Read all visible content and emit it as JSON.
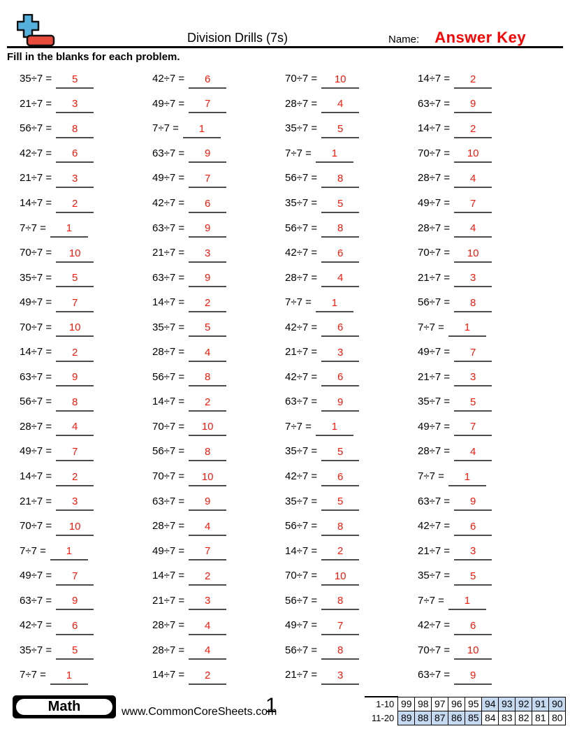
{
  "header": {
    "title": "Division Drills (7s)",
    "name_label": "Name:",
    "name_value": "Answer Key",
    "instructions": "Fill in the blanks for each problem.",
    "logo_icon": "plus-minus-math-logo"
  },
  "colors": {
    "accent_red": "#fe0000",
    "answer_red": "#f9180a",
    "highlight_blue": "#c5d9f1",
    "logo_blue": "#56b0dc",
    "logo_red": "#e84b3c"
  },
  "problems": {
    "columns": [
      [
        {
          "q": "35÷7 =",
          "a": "5"
        },
        {
          "q": "21÷7 =",
          "a": "3"
        },
        {
          "q": "56÷7 =",
          "a": "8"
        },
        {
          "q": "42÷7 =",
          "a": "6"
        },
        {
          "q": "21÷7 =",
          "a": "3"
        },
        {
          "q": "14÷7 =",
          "a": "2"
        },
        {
          "q": "7÷7 =",
          "a": "1"
        },
        {
          "q": "70÷7 =",
          "a": "10"
        },
        {
          "q": "35÷7 =",
          "a": "5"
        },
        {
          "q": "49÷7 =",
          "a": "7"
        },
        {
          "q": "70÷7 =",
          "a": "10"
        },
        {
          "q": "14÷7 =",
          "a": "2"
        },
        {
          "q": "63÷7 =",
          "a": "9"
        },
        {
          "q": "56÷7 =",
          "a": "8"
        },
        {
          "q": "28÷7 =",
          "a": "4"
        },
        {
          "q": "49÷7 =",
          "a": "7"
        },
        {
          "q": "14÷7 =",
          "a": "2"
        },
        {
          "q": "21÷7 =",
          "a": "3"
        },
        {
          "q": "70÷7 =",
          "a": "10"
        },
        {
          "q": "7÷7 =",
          "a": "1"
        },
        {
          "q": "49÷7 =",
          "a": "7"
        },
        {
          "q": "63÷7 =",
          "a": "9"
        },
        {
          "q": "42÷7 =",
          "a": "6"
        },
        {
          "q": "35÷7 =",
          "a": "5"
        },
        {
          "q": "7÷7 =",
          "a": "1"
        }
      ],
      [
        {
          "q": "42÷7 =",
          "a": "6"
        },
        {
          "q": "49÷7 =",
          "a": "7"
        },
        {
          "q": "7÷7 =",
          "a": "1"
        },
        {
          "q": "63÷7 =",
          "a": "9"
        },
        {
          "q": "49÷7 =",
          "a": "7"
        },
        {
          "q": "42÷7 =",
          "a": "6"
        },
        {
          "q": "63÷7 =",
          "a": "9"
        },
        {
          "q": "21÷7 =",
          "a": "3"
        },
        {
          "q": "63÷7 =",
          "a": "9"
        },
        {
          "q": "14÷7 =",
          "a": "2"
        },
        {
          "q": "35÷7 =",
          "a": "5"
        },
        {
          "q": "28÷7 =",
          "a": "4"
        },
        {
          "q": "56÷7 =",
          "a": "8"
        },
        {
          "q": "14÷7 =",
          "a": "2"
        },
        {
          "q": "70÷7 =",
          "a": "10"
        },
        {
          "q": "56÷7 =",
          "a": "8"
        },
        {
          "q": "70÷7 =",
          "a": "10"
        },
        {
          "q": "63÷7 =",
          "a": "9"
        },
        {
          "q": "28÷7 =",
          "a": "4"
        },
        {
          "q": "49÷7 =",
          "a": "7"
        },
        {
          "q": "14÷7 =",
          "a": "2"
        },
        {
          "q": "21÷7 =",
          "a": "3"
        },
        {
          "q": "28÷7 =",
          "a": "4"
        },
        {
          "q": "28÷7 =",
          "a": "4"
        },
        {
          "q": "14÷7 =",
          "a": "2"
        }
      ],
      [
        {
          "q": "70÷7 =",
          "a": "10"
        },
        {
          "q": "28÷7 =",
          "a": "4"
        },
        {
          "q": "35÷7 =",
          "a": "5"
        },
        {
          "q": "7÷7 =",
          "a": "1"
        },
        {
          "q": "56÷7 =",
          "a": "8"
        },
        {
          "q": "35÷7 =",
          "a": "5"
        },
        {
          "q": "56÷7 =",
          "a": "8"
        },
        {
          "q": "42÷7 =",
          "a": "6"
        },
        {
          "q": "28÷7 =",
          "a": "4"
        },
        {
          "q": "7÷7 =",
          "a": "1"
        },
        {
          "q": "42÷7 =",
          "a": "6"
        },
        {
          "q": "21÷7 =",
          "a": "3"
        },
        {
          "q": "42÷7 =",
          "a": "6"
        },
        {
          "q": "63÷7 =",
          "a": "9"
        },
        {
          "q": "7÷7 =",
          "a": "1"
        },
        {
          "q": "35÷7 =",
          "a": "5"
        },
        {
          "q": "42÷7 =",
          "a": "6"
        },
        {
          "q": "35÷7 =",
          "a": "5"
        },
        {
          "q": "56÷7 =",
          "a": "8"
        },
        {
          "q": "14÷7 =",
          "a": "2"
        },
        {
          "q": "70÷7 =",
          "a": "10"
        },
        {
          "q": "56÷7 =",
          "a": "8"
        },
        {
          "q": "49÷7 =",
          "a": "7"
        },
        {
          "q": "56÷7 =",
          "a": "8"
        },
        {
          "q": "21÷7 =",
          "a": "3"
        }
      ],
      [
        {
          "q": "14÷7 =",
          "a": "2"
        },
        {
          "q": "63÷7 =",
          "a": "9"
        },
        {
          "q": "14÷7 =",
          "a": "2"
        },
        {
          "q": "70÷7 =",
          "a": "10"
        },
        {
          "q": "28÷7 =",
          "a": "4"
        },
        {
          "q": "49÷7 =",
          "a": "7"
        },
        {
          "q": "28÷7 =",
          "a": "4"
        },
        {
          "q": "70÷7 =",
          "a": "10"
        },
        {
          "q": "21÷7 =",
          "a": "3"
        },
        {
          "q": "56÷7 =",
          "a": "8"
        },
        {
          "q": "7÷7 =",
          "a": "1"
        },
        {
          "q": "49÷7 =",
          "a": "7"
        },
        {
          "q": "21÷7 =",
          "a": "3"
        },
        {
          "q": "35÷7 =",
          "a": "5"
        },
        {
          "q": "49÷7 =",
          "a": "7"
        },
        {
          "q": "28÷7 =",
          "a": "4"
        },
        {
          "q": "7÷7 =",
          "a": "1"
        },
        {
          "q": "63÷7 =",
          "a": "9"
        },
        {
          "q": "42÷7 =",
          "a": "6"
        },
        {
          "q": "21÷7 =",
          "a": "3"
        },
        {
          "q": "35÷7 =",
          "a": "5"
        },
        {
          "q": "7÷7 =",
          "a": "1"
        },
        {
          "q": "42÷7 =",
          "a": "6"
        },
        {
          "q": "70÷7 =",
          "a": "10"
        },
        {
          "q": "63÷7 =",
          "a": "9"
        }
      ]
    ]
  },
  "footer": {
    "subject_badge": "Math",
    "website": "www.CommonCoreSheets.com",
    "page_number": "1",
    "score_table": {
      "rows": [
        {
          "label": "1-10",
          "values": [
            "99",
            "98",
            "97",
            "96",
            "95",
            "94",
            "93",
            "92",
            "91",
            "90"
          ],
          "highlighted": [
            false,
            false,
            false,
            false,
            false,
            true,
            true,
            true,
            true,
            true
          ]
        },
        {
          "label": "11-20",
          "values": [
            "89",
            "88",
            "87",
            "86",
            "85",
            "84",
            "83",
            "82",
            "81",
            "80"
          ],
          "highlighted": [
            true,
            true,
            true,
            true,
            true,
            false,
            false,
            false,
            false,
            false
          ]
        }
      ]
    }
  }
}
